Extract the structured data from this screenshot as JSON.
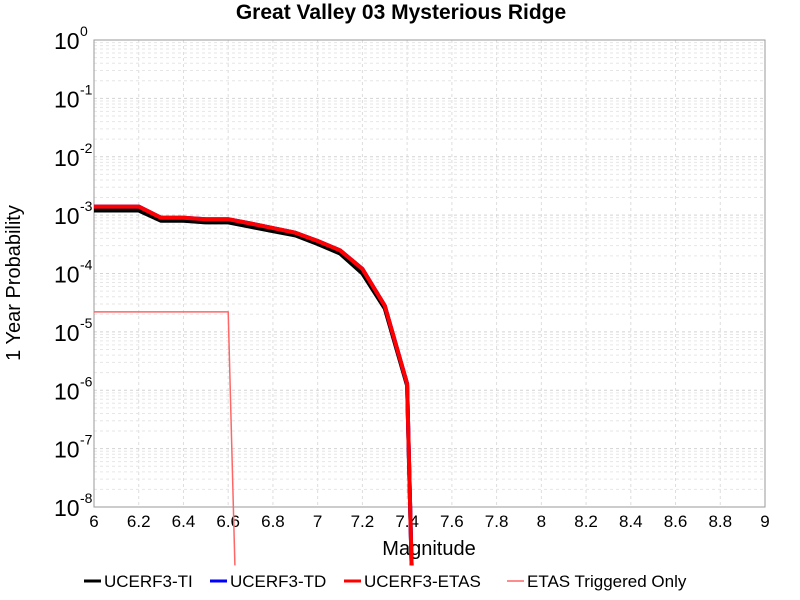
{
  "chart_data": {
    "type": "line",
    "title": "Great Valley 03 Mysterious Ridge",
    "xlabel": "Magnitude",
    "ylabel": "1 Year Probability",
    "xlim": [
      6,
      9
    ],
    "ylim": [
      1e-08,
      1
    ],
    "yscale": "log",
    "x_ticks": [
      "6",
      "6.2",
      "6.4",
      "6.6",
      "6.8",
      "7",
      "7.2",
      "7.4",
      "7.6",
      "7.8",
      "8",
      "8.2",
      "8.4",
      "8.6",
      "8.8",
      "9"
    ],
    "y_tick_exponents": [
      "0",
      "-1",
      "-2",
      "-3",
      "-4",
      "-5",
      "-6",
      "-7",
      "-8"
    ],
    "grid": true,
    "legend_position": "bottom",
    "series": [
      {
        "name": "UCERF3-TI",
        "color": "#000000",
        "x": [
          6.0,
          6.1,
          6.2,
          6.3,
          6.4,
          6.5,
          6.6,
          6.7,
          6.8,
          6.9,
          7.0,
          7.1,
          7.2,
          7.3,
          7.4,
          7.42
        ],
        "y": [
          0.0012,
          0.0012,
          0.0012,
          0.0008,
          0.0008,
          0.00075,
          0.00075,
          0.00063,
          0.00053,
          0.00045,
          0.00032,
          0.00022,
          0.0001,
          2.5e-05,
          1.2e-06,
          1e-09
        ]
      },
      {
        "name": "UCERF3-TD",
        "color": "#0000ff",
        "x": [
          6.0,
          6.1,
          6.2,
          6.3,
          6.4,
          6.5,
          6.6,
          6.7,
          6.8,
          6.9,
          7.0,
          7.1,
          7.2,
          7.3,
          7.4,
          7.42
        ],
        "y": [
          0.0014,
          0.0014,
          0.0014,
          0.0009,
          0.0009,
          0.00085,
          0.00085,
          0.00072,
          0.0006,
          0.0005,
          0.00036,
          0.00025,
          0.00012,
          2.8e-05,
          1.3e-06,
          1e-09
        ]
      },
      {
        "name": "UCERF3-ETAS",
        "color": "#ff0000",
        "x": [
          6.0,
          6.1,
          6.2,
          6.3,
          6.4,
          6.5,
          6.6,
          6.7,
          6.8,
          6.9,
          7.0,
          7.1,
          7.2,
          7.3,
          7.4,
          7.42
        ],
        "y": [
          0.0014,
          0.0014,
          0.0014,
          0.0009,
          0.0009,
          0.00085,
          0.00085,
          0.00072,
          0.0006,
          0.0005,
          0.00036,
          0.00025,
          0.00012,
          2.8e-05,
          1.3e-06,
          1e-09
        ]
      },
      {
        "name": "ETAS Triggered Only",
        "color": "#ff6666",
        "x": [
          6.0,
          6.1,
          6.2,
          6.3,
          6.4,
          6.5,
          6.6,
          6.63
        ],
        "y": [
          2.2e-05,
          2.2e-05,
          2.2e-05,
          2.2e-05,
          2.2e-05,
          2.2e-05,
          2.2e-05,
          1e-09
        ]
      }
    ]
  }
}
